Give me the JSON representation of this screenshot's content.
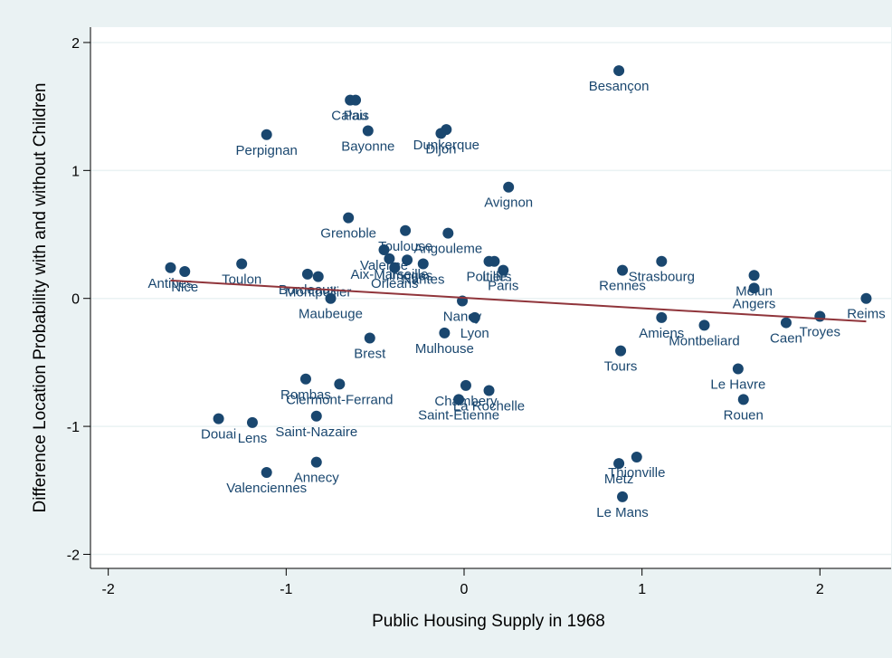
{
  "chart_data": {
    "type": "scatter",
    "xlabel": "Public Housing Supply in 1968",
    "ylabel": "Difference Location Probability with and without Children",
    "xlim": [
      -2.1,
      2.4
    ],
    "ylim": [
      -2.11,
      2.12
    ],
    "xticks": [
      -2,
      -1,
      0,
      1,
      2
    ],
    "yticks": [
      -2,
      -1,
      0,
      1,
      2
    ],
    "grid": true,
    "color": "#1a476f",
    "labels": [
      "Besançon",
      "Perpignan",
      "Calais",
      "Pau",
      "Bayonne",
      "Dunkerque",
      "Dijon",
      "Avignon",
      "Grenoble",
      "Toulouse",
      "Angouleme",
      "Valence",
      "Aix-Marseille",
      "Limoges",
      "Orleans",
      "Nantes",
      "Poitiers",
      "Lille",
      "Paris",
      "Antibes",
      "Nice",
      "Toulon",
      "Bordeaux",
      "Montpellier",
      "Maubeuge",
      "Nancy",
      "Lyon",
      "Mulhouse",
      "Brest",
      "Rennes",
      "Strasbourg",
      "Melun",
      "Angers",
      "Reims",
      "Troyes",
      "Caen",
      "Amiens",
      "Montbeliard",
      "Tours",
      "Le Havre",
      "Rouen",
      "Rombas",
      "Clermont-Ferrand",
      "Saint-Nazaire",
      "Chambery",
      "Saint-Etienne",
      "La Rochelle",
      "Douai",
      "Lens",
      "Valenciennes",
      "Annecy",
      "Thionville",
      "Metz",
      "Le Mans"
    ],
    "x": [
      0.87,
      -1.11,
      -0.64,
      -0.61,
      -0.54,
      -0.1,
      -0.13,
      0.25,
      -0.65,
      -0.33,
      -0.09,
      -0.45,
      -0.42,
      -0.32,
      -0.39,
      -0.23,
      0.14,
      0.17,
      0.22,
      -1.65,
      -1.57,
      -1.25,
      -0.88,
      -0.82,
      -0.75,
      -0.01,
      0.06,
      -0.11,
      -0.53,
      0.89,
      1.11,
      1.63,
      1.63,
      2.26,
      2.0,
      1.81,
      1.11,
      1.35,
      0.88,
      1.54,
      1.57,
      -0.89,
      -0.7,
      -0.83,
      0.01,
      -0.03,
      0.14,
      -1.38,
      -1.19,
      -1.11,
      -0.83,
      0.97,
      0.87,
      0.89
    ],
    "y": [
      1.78,
      1.28,
      1.55,
      1.55,
      1.31,
      1.32,
      1.29,
      0.87,
      0.63,
      0.53,
      0.51,
      0.38,
      0.31,
      0.3,
      0.24,
      0.27,
      0.29,
      0.29,
      0.22,
      0.24,
      0.21,
      0.27,
      0.19,
      0.17,
      0.0,
      -0.02,
      -0.15,
      -0.27,
      -0.31,
      0.22,
      0.29,
      0.18,
      0.08,
      0.0,
      -0.14,
      -0.19,
      -0.15,
      -0.21,
      -0.41,
      -0.55,
      -0.79,
      -0.63,
      -0.67,
      -0.92,
      -0.68,
      -0.79,
      -0.72,
      -0.94,
      -0.97,
      -1.36,
      -1.28,
      -1.24,
      -1.29,
      -1.55
    ],
    "fit": {
      "x": [
        -1.65,
        2.26
      ],
      "y": [
        0.14,
        -0.18
      ],
      "color": "#90353b"
    }
  }
}
